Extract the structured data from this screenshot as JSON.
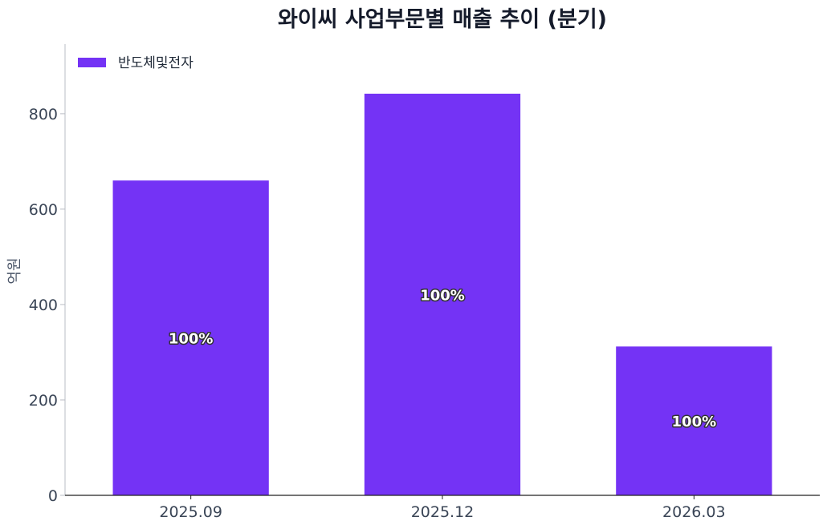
{
  "chart_data": {
    "type": "bar",
    "title": "와이씨 사업부문별 매출 추이 (분기)",
    "xlabel": "",
    "ylabel": "억원",
    "categories": [
      "2025.09",
      "2025.12",
      "2026.03"
    ],
    "series": [
      {
        "name": "반도체및전자",
        "color": "#7433f5",
        "values": [
          660,
          842,
          312
        ],
        "labels": [
          "100%",
          "100%",
          "100%"
        ]
      }
    ],
    "ylim": [
      0,
      946
    ],
    "yticks": [
      0,
      200,
      400,
      600,
      800
    ],
    "grid": false,
    "legend_position": "top-left"
  }
}
